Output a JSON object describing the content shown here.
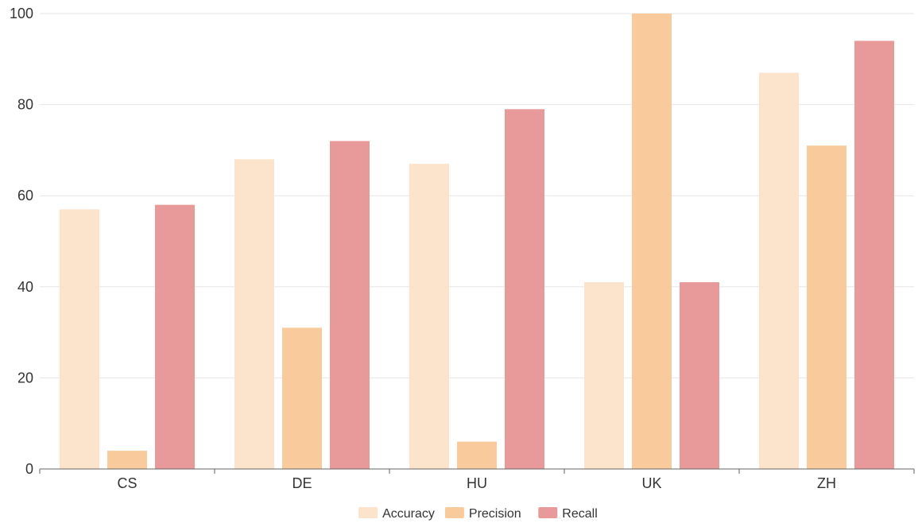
{
  "chart_data": {
    "type": "bar",
    "title": "",
    "xlabel": "",
    "ylabel": "",
    "categories": [
      "CS",
      "DE",
      "HU",
      "UK",
      "ZH"
    ],
    "series": [
      {
        "name": "Accuracy",
        "color": "#fce4cc",
        "values": [
          57,
          68,
          67,
          41,
          87
        ]
      },
      {
        "name": "Precision",
        "color": "#f8ca9c",
        "values": [
          4,
          31,
          6,
          100,
          71
        ]
      },
      {
        "name": "Recall",
        "color": "#e89a9a",
        "values": [
          58,
          72,
          79,
          41,
          94
        ]
      }
    ],
    "ylim": [
      0,
      100
    ],
    "yticks": [
      0,
      20,
      40,
      60,
      80,
      100
    ],
    "grid": true,
    "legend_position": "bottom-center"
  }
}
